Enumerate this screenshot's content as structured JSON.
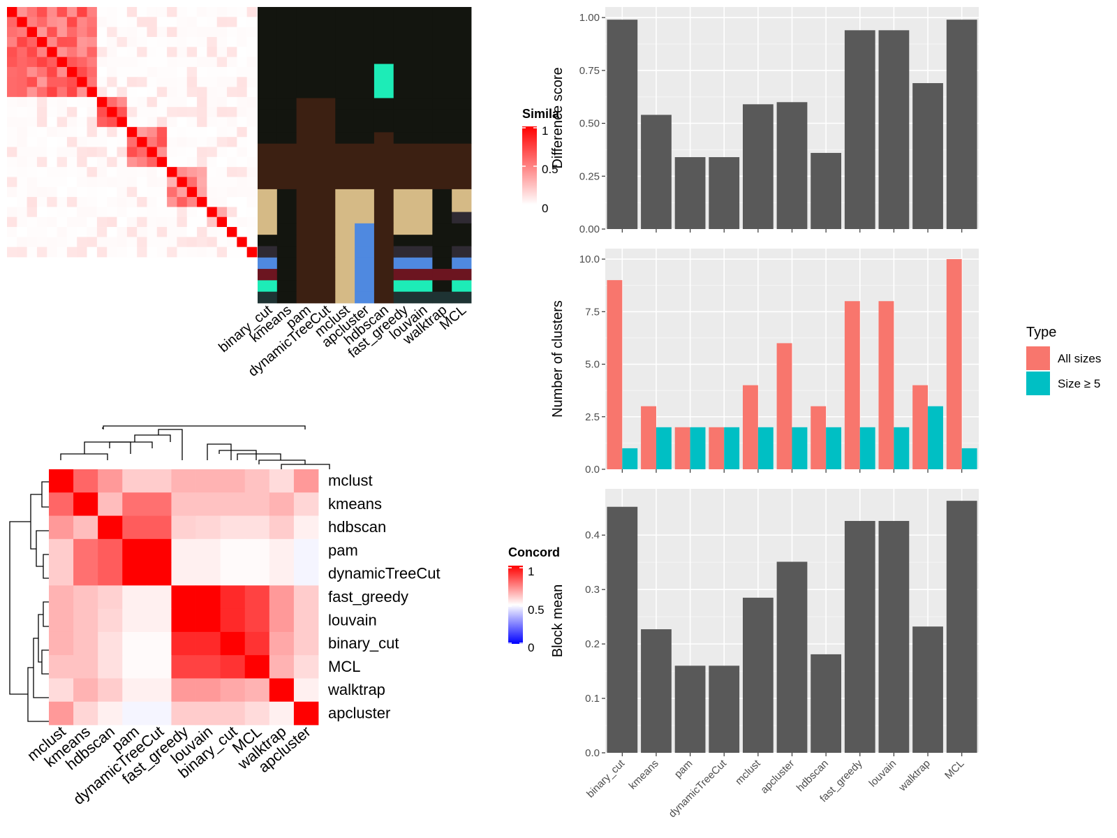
{
  "chart_data": [
    {
      "type": "heatmap",
      "panel": "similarity-matrix",
      "legend": {
        "title": "Simila",
        "ticks": [
          "1",
          "0.5",
          "0"
        ],
        "colors": {
          "low": "#ffffff",
          "high": "#ff0000"
        }
      },
      "blocks": [
        {
          "start": 0,
          "size": 9,
          "intensity": 0.55
        },
        {
          "start": 9,
          "size": 3,
          "intensity": 0.55
        },
        {
          "start": 12,
          "size": 4,
          "intensity": 0.5
        },
        {
          "start": 16,
          "size": 4,
          "intensity": 0.45
        },
        {
          "start": 20,
          "size": 2,
          "intensity": 0.3
        }
      ],
      "n": 25
    },
    {
      "type": "heatmap",
      "panel": "cluster-assignments",
      "columns": [
        "binary_cut",
        "kmeans",
        "pam",
        "dynamicTreeCut",
        "mclust",
        "apcluster",
        "hdbscan",
        "fast_greedy",
        "louvain",
        "walktrap",
        "MCL"
      ],
      "colors": {
        "k": "#13150f",
        "b": "#3c2012",
        "t": "#d5ba86",
        "c": "#1decb7",
        "g": "#2f2a33",
        "u": "#4f89e0",
        "m": "#6c1520",
        "d": "#1e3333"
      },
      "rows": [
        {
          "h": 5,
          "v": "kkkkkkkkkkk"
        },
        {
          "h": 3,
          "v": "kkkkkkckkkk"
        },
        {
          "h": 1,
          "v": "kkbbkkkkkkk"
        },
        {
          "h": 2,
          "v": "kkbbkkkkkkk"
        },
        {
          "h": 1,
          "v": "kkbbkkbkkkk"
        },
        {
          "h": 4,
          "v": "bbbbbbbbbbb"
        },
        {
          "h": 2,
          "v": "tkbbttbttkt"
        },
        {
          "h": 1,
          "v": "tkbbttbttkg"
        },
        {
          "h": 1,
          "v": "tkbbtubttkk"
        },
        {
          "h": 1,
          "v": "kkbbtubkkkk"
        },
        {
          "h": 1,
          "v": "gkbbtubggkg"
        },
        {
          "h": 1,
          "v": "ukbbtubuuku"
        },
        {
          "h": 1,
          "v": "mkbbtubmmmm"
        },
        {
          "h": 1,
          "v": "ckbbtubcckc"
        },
        {
          "h": 1,
          "v": "dkbbtubdddd"
        }
      ]
    },
    {
      "type": "heatmap",
      "panel": "concordance",
      "labels": [
        "mclust",
        "kmeans",
        "hdbscan",
        "pam",
        "dynamicTreeCut",
        "fast_greedy",
        "louvain",
        "binary_cut",
        "MCL",
        "walktrap",
        "apcluster"
      ],
      "values": [
        [
          1.0,
          0.8,
          0.7,
          0.6,
          0.6,
          0.65,
          0.65,
          0.65,
          0.62,
          0.57,
          0.7
        ],
        [
          0.8,
          1.0,
          0.63,
          0.78,
          0.78,
          0.62,
          0.62,
          0.62,
          0.62,
          0.65,
          0.58
        ],
        [
          0.7,
          0.63,
          1.0,
          0.82,
          0.82,
          0.59,
          0.58,
          0.56,
          0.56,
          0.6,
          0.53
        ],
        [
          0.6,
          0.78,
          0.82,
          1.0,
          1.0,
          0.53,
          0.53,
          0.51,
          0.51,
          0.53,
          0.48
        ],
        [
          0.6,
          0.78,
          0.82,
          1.0,
          1.0,
          0.53,
          0.53,
          0.51,
          0.51,
          0.53,
          0.48
        ],
        [
          0.65,
          0.62,
          0.59,
          0.53,
          0.53,
          1.0,
          1.0,
          0.92,
          0.87,
          0.7,
          0.6
        ],
        [
          0.65,
          0.62,
          0.58,
          0.53,
          0.53,
          1.0,
          1.0,
          0.92,
          0.87,
          0.7,
          0.6
        ],
        [
          0.65,
          0.62,
          0.56,
          0.51,
          0.51,
          0.92,
          0.92,
          1.0,
          0.9,
          0.67,
          0.6
        ],
        [
          0.62,
          0.62,
          0.56,
          0.51,
          0.51,
          0.87,
          0.87,
          0.9,
          1.0,
          0.65,
          0.57
        ],
        [
          0.57,
          0.65,
          0.6,
          0.53,
          0.53,
          0.7,
          0.7,
          0.67,
          0.65,
          1.0,
          0.53
        ],
        [
          0.7,
          0.58,
          0.53,
          0.48,
          0.48,
          0.6,
          0.6,
          0.6,
          0.57,
          0.53,
          1.0
        ]
      ],
      "legend": {
        "title": "Concord",
        "ticks": [
          "1",
          "0.5",
          "0"
        ],
        "colors": {
          "low": "#0000ff",
          "mid": "#ffffff",
          "high": "#ff0000"
        }
      }
    },
    {
      "type": "bar",
      "panel": "difference-score",
      "categories": [
        "binary_cut",
        "kmeans",
        "pam",
        "dynamicTreeCut",
        "mclust",
        "apcluster",
        "hdbscan",
        "fast_greedy",
        "louvain",
        "walktrap",
        "MCL"
      ],
      "values": [
        0.99,
        0.54,
        0.34,
        0.34,
        0.59,
        0.6,
        0.36,
        0.94,
        0.94,
        0.69,
        0.99
      ],
      "ylabel": "Difference score",
      "ylim": [
        0,
        1.05
      ],
      "yticks": [
        "0.00",
        "0.25",
        "0.50",
        "0.75",
        "1.00"
      ],
      "grid": true,
      "bar_color": "#595959"
    },
    {
      "type": "bar",
      "panel": "number-of-clusters",
      "categories": [
        "binary_cut",
        "kmeans",
        "pam",
        "dynamicTreeCut",
        "mclust",
        "apcluster",
        "hdbscan",
        "fast_greedy",
        "louvain",
        "walktrap",
        "MCL"
      ],
      "series": [
        {
          "name": "All sizes",
          "color": "#f8766d",
          "values": [
            9,
            3,
            2,
            2,
            4,
            6,
            3,
            8,
            8,
            4,
            10
          ]
        },
        {
          "name": "Size ≥ 5",
          "color": "#00bfc4",
          "values": [
            1,
            2,
            2,
            2,
            2,
            2,
            2,
            2,
            2,
            3,
            1
          ]
        }
      ],
      "ylabel": "Number of clusters",
      "ylim": [
        0,
        10.5
      ],
      "yticks": [
        "0.0",
        "2.5",
        "5.0",
        "7.5",
        "10.0"
      ],
      "grid": true,
      "legend": {
        "title": "Type",
        "placement": "right"
      }
    },
    {
      "type": "bar",
      "panel": "block-mean",
      "categories": [
        "binary_cut",
        "kmeans",
        "pam",
        "dynamicTreeCut",
        "mclust",
        "apcluster",
        "hdbscan",
        "fast_greedy",
        "louvain",
        "walktrap",
        "MCL"
      ],
      "values": [
        0.452,
        0.227,
        0.16,
        0.16,
        0.285,
        0.351,
        0.181,
        0.426,
        0.426,
        0.232,
        0.463
      ],
      "ylabel": "Block mean",
      "ylim": [
        0,
        0.485
      ],
      "yticks": [
        "0.0",
        "0.1",
        "0.2",
        "0.3",
        "0.4"
      ],
      "grid": true,
      "bar_color": "#595959"
    }
  ]
}
